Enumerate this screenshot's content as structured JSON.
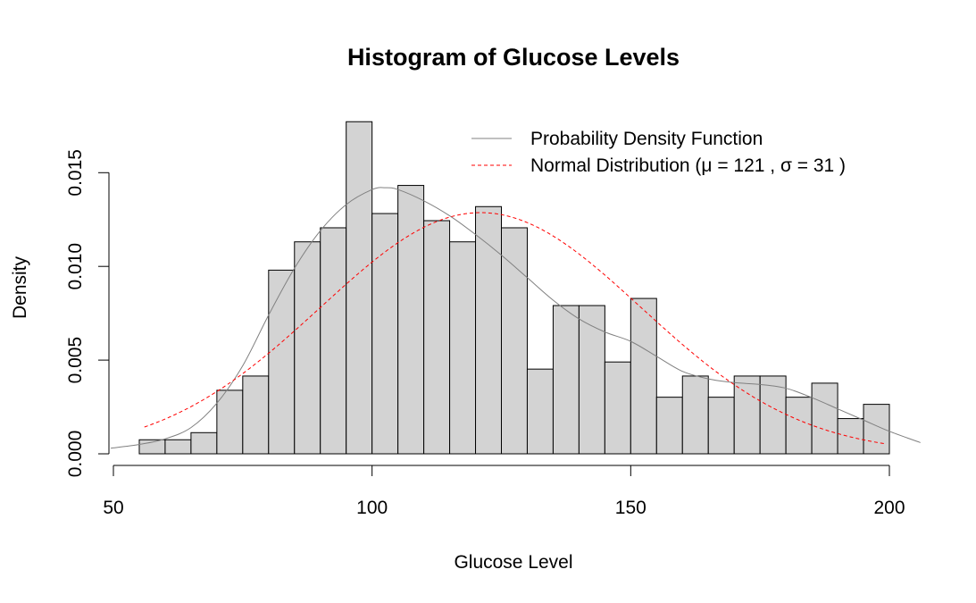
{
  "chart_data": {
    "type": "bar",
    "title": "Histogram of Glucose Levels",
    "xlabel": "Glucose Level",
    "ylabel": "Density",
    "xlim": [
      50,
      200
    ],
    "ylim": [
      0,
      0.0175
    ],
    "x_ticks": [
      "50",
      "100",
      "150",
      "200"
    ],
    "y_ticks": [
      "0.000",
      "0.005",
      "0.010",
      "0.015"
    ],
    "bin_width": 5,
    "bins": [
      {
        "x0": 55,
        "x1": 60,
        "density": 0.00075
      },
      {
        "x0": 60,
        "x1": 65,
        "density": 0.00075
      },
      {
        "x0": 65,
        "x1": 70,
        "density": 0.00113
      },
      {
        "x0": 70,
        "x1": 75,
        "density": 0.00339
      },
      {
        "x0": 75,
        "x1": 80,
        "density": 0.00415
      },
      {
        "x0": 80,
        "x1": 85,
        "density": 0.0098
      },
      {
        "x0": 85,
        "x1": 90,
        "density": 0.01131
      },
      {
        "x0": 90,
        "x1": 95,
        "density": 0.01206
      },
      {
        "x0": 95,
        "x1": 100,
        "density": 0.01772
      },
      {
        "x0": 100,
        "x1": 105,
        "density": 0.01282
      },
      {
        "x0": 105,
        "x1": 110,
        "density": 0.01432
      },
      {
        "x0": 110,
        "x1": 115,
        "density": 0.01244
      },
      {
        "x0": 115,
        "x1": 120,
        "density": 0.01131
      },
      {
        "x0": 120,
        "x1": 125,
        "density": 0.01319
      },
      {
        "x0": 125,
        "x1": 130,
        "density": 0.01206
      },
      {
        "x0": 130,
        "x1": 135,
        "density": 0.00452
      },
      {
        "x0": 135,
        "x1": 140,
        "density": 0.00791
      },
      {
        "x0": 140,
        "x1": 145,
        "density": 0.00791
      },
      {
        "x0": 145,
        "x1": 150,
        "density": 0.0049
      },
      {
        "x0": 150,
        "x1": 155,
        "density": 0.00829
      },
      {
        "x0": 155,
        "x1": 160,
        "density": 0.00302
      },
      {
        "x0": 160,
        "x1": 165,
        "density": 0.00415
      },
      {
        "x0": 165,
        "x1": 170,
        "density": 0.00302
      },
      {
        "x0": 170,
        "x1": 175,
        "density": 0.00415
      },
      {
        "x0": 175,
        "x1": 180,
        "density": 0.00415
      },
      {
        "x0": 180,
        "x1": 185,
        "density": 0.00302
      },
      {
        "x0": 185,
        "x1": 190,
        "density": 0.00377
      },
      {
        "x0": 190,
        "x1": 195,
        "density": 0.00188
      },
      {
        "x0": 195,
        "x1": 200,
        "density": 0.00264
      }
    ],
    "bar_fill": "#d3d3d3",
    "series": [
      {
        "name": "Probability Density Function",
        "style": "solid",
        "color": "#808080",
        "x": [
          49.5,
          55,
          60,
          65,
          70,
          75,
          80,
          85,
          90,
          95,
          100,
          102.5,
          105,
          110,
          115,
          120,
          125,
          130,
          135,
          140,
          145,
          150,
          155,
          160,
          165,
          170,
          175,
          180,
          185,
          190,
          195,
          200,
          206
        ],
        "y": [
          0.0003,
          0.0005,
          0.0008,
          0.0014,
          0.0027,
          0.0047,
          0.0074,
          0.0099,
          0.0119,
          0.0133,
          0.0141,
          0.0142,
          0.0141,
          0.0135,
          0.0127,
          0.0117,
          0.0106,
          0.0094,
          0.0082,
          0.0072,
          0.0065,
          0.006,
          0.0052,
          0.0044,
          0.004,
          0.0038,
          0.0037,
          0.0035,
          0.003,
          0.0024,
          0.0018,
          0.0012,
          0.0006
        ]
      },
      {
        "name": "Normal Distribution (μ = 121 , σ = 31 )",
        "style": "dashed",
        "color": "#ff0000",
        "mean": 121,
        "sd": 31,
        "x_range": [
          56,
          199
        ]
      }
    ],
    "legend": {
      "position": "top-right",
      "entries": [
        "Probability Density Function",
        "Normal Distribution (μ = 121 , σ = 31 )"
      ]
    }
  }
}
